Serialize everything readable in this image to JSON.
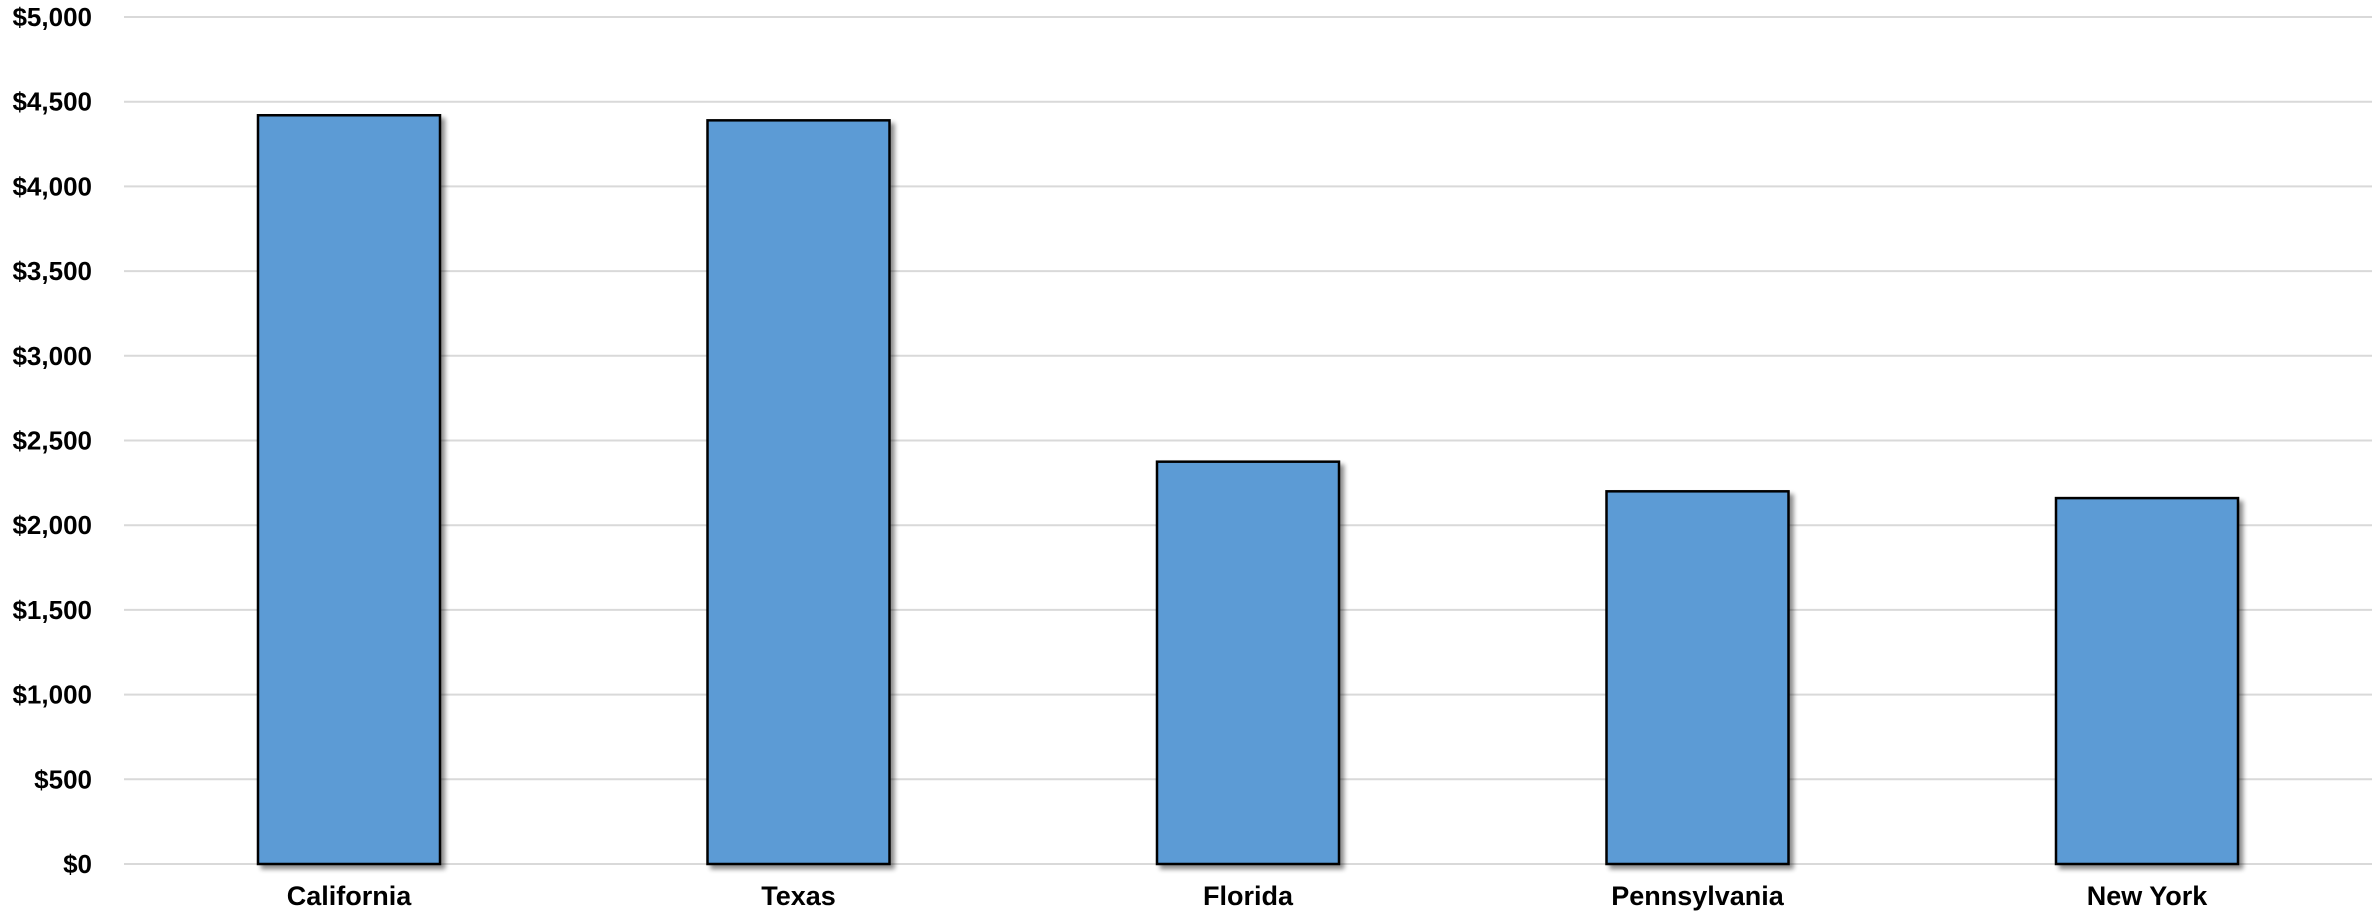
{
  "chart_data": {
    "type": "bar",
    "title": "",
    "xlabel": "",
    "ylabel": "",
    "categories": [
      "California",
      "Texas",
      "Florida",
      "Pennsylvania",
      "New York"
    ],
    "values": [
      4420,
      4390,
      2375,
      2200,
      2160
    ],
    "ylim": [
      0,
      5000
    ],
    "y_ticks": [
      0,
      500,
      1000,
      1500,
      2000,
      2500,
      3000,
      3500,
      4000,
      4500,
      5000
    ],
    "y_tick_labels": [
      "$0",
      "$500",
      "$1,000",
      "$1,500",
      "$2,000",
      "$2,500",
      "$3,000",
      "$3,500",
      "$4,000",
      "$4,500",
      "$5,000"
    ],
    "grid": true,
    "legend": "none",
    "colors": {
      "bar_fill": "#5B9BD5",
      "bar_stroke": "#000000",
      "grid": "#D9D9D9",
      "text": "#000000"
    }
  }
}
